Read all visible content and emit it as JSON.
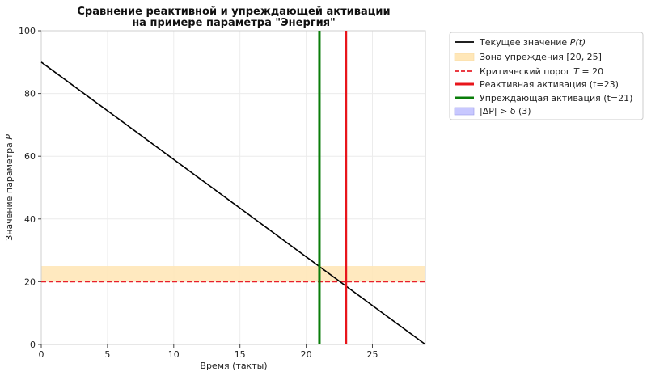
{
  "chart_data": {
    "type": "line",
    "title_line1": "Сравнение реактивной и упреждающей активации",
    "title_line2": "на примере параметра \"Энергия\"",
    "xlabel": "Время (такты)",
    "ylabel_prefix": "Значение параметра ",
    "ylabel_var": "P",
    "xlim": [
      0,
      29
    ],
    "ylim": [
      0,
      100
    ],
    "xticks": [
      0,
      5,
      10,
      15,
      20,
      25
    ],
    "yticks": [
      0,
      20,
      40,
      60,
      80,
      100
    ],
    "grid": true,
    "legend_position": "outside-right",
    "series": [
      {
        "name": "Текущее значение P(t)",
        "kind": "line",
        "x": [
          0,
          29
        ],
        "y": [
          90,
          0
        ],
        "color": "#000000"
      }
    ],
    "warning_zone": {
      "name": "Зона упреждения [20, 25]",
      "y_from": 20,
      "y_to": 25,
      "color": "#ffe7b8"
    },
    "threshold": {
      "name": "Критический порог T = 20",
      "y": 20,
      "color": "#e8202a",
      "style": "dashed"
    },
    "reactive_activation": {
      "name": "Реактивная активация (t=23)",
      "x": 23,
      "color": "#e8151b"
    },
    "proactive_activation": {
      "name": "Упреждающая активация (t=21)",
      "x": 21,
      "color": "#0a7d0a"
    },
    "delta_band": {
      "name": "|ΔP| > δ (3)",
      "color": "#c8c8ff"
    }
  },
  "legend": {
    "items": [
      {
        "key": "line",
        "label_plain": "Текущее значение ",
        "label_italic": "P(t)"
      },
      {
        "key": "zone",
        "label": "Зона упреждения [20, 25]"
      },
      {
        "key": "threshold",
        "label_plain": "Критический порог ",
        "label_italic": "T",
        "label_tail": " = 20"
      },
      {
        "key": "reactive",
        "label": "Реактивная активация (t=23)"
      },
      {
        "key": "proactive",
        "label": "Упреждающая активация (t=21)"
      },
      {
        "key": "delta",
        "label": "|ΔP| > δ (3)"
      }
    ]
  }
}
